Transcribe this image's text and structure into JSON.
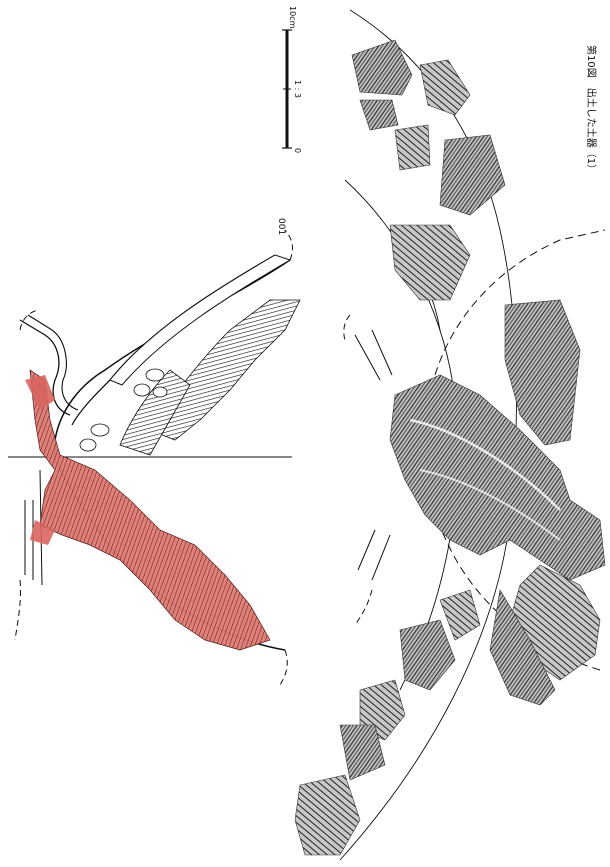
{
  "scale_bar": {
    "max_label": "10cm",
    "ratio_label": "1 : 3",
    "min_label": "0"
  },
  "vessel": {
    "number": "001"
  },
  "caption": "第10図　出土した土器（1）",
  "colors": {
    "restoration_red": "#d9655f",
    "line": "#111111",
    "rubbing": "#3a3a3a"
  }
}
